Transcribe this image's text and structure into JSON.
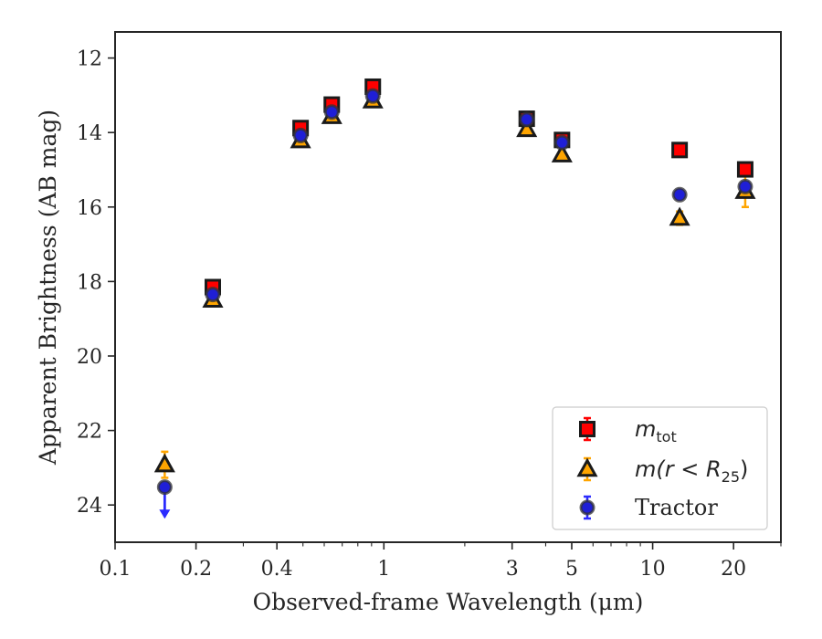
{
  "chart_data": {
    "type": "scatter",
    "xlabel": "Observed-frame Wavelength (μm)",
    "ylabel": "Apparent Brightness (AB mag)",
    "xscale": "log",
    "yinverted": true,
    "xlim": [
      0.1,
      30
    ],
    "ylim": [
      25,
      11.3
    ],
    "xticks": [
      {
        "value": 0.1,
        "label": "0.1"
      },
      {
        "value": 0.2,
        "label": "0.2"
      },
      {
        "value": 0.4,
        "label": "0.4"
      },
      {
        "value": 1,
        "label": "1"
      },
      {
        "value": 3,
        "label": "3"
      },
      {
        "value": 5,
        "label": "5"
      },
      {
        "value": 10,
        "label": "10"
      },
      {
        "value": 20,
        "label": "20"
      }
    ],
    "yticks": [
      {
        "value": 12,
        "label": "12"
      },
      {
        "value": 14,
        "label": "14"
      },
      {
        "value": 16,
        "label": "16"
      },
      {
        "value": 18,
        "label": "18"
      },
      {
        "value": 20,
        "label": "20"
      },
      {
        "value": 22,
        "label": "22"
      },
      {
        "value": 24,
        "label": "24"
      }
    ],
    "legend": {
      "placement": "lower-right",
      "entries": [
        {
          "series": "mtot",
          "main": "m",
          "sub": "tot",
          "suffix": ""
        },
        {
          "series": "mr25",
          "main": "m(r < R",
          "sub": "25",
          "suffix": ")"
        },
        {
          "series": "tractor",
          "main": "Tractor",
          "sub": "",
          "suffix": ""
        }
      ]
    },
    "series": [
      {
        "key": "mtot",
        "marker": "square",
        "color": "#ff0000",
        "errcolor": "#ff0000",
        "points": [
          {
            "x": 0.231,
            "y": 18.15,
            "err": 0.08
          },
          {
            "x": 0.49,
            "y": 13.88,
            "err": 0.05
          },
          {
            "x": 0.64,
            "y": 13.25,
            "err": 0.05
          },
          {
            "x": 0.91,
            "y": 12.77,
            "err": 0.05
          },
          {
            "x": 3.4,
            "y": 13.63,
            "err": 0.05
          },
          {
            "x": 4.6,
            "y": 14.2,
            "err": 0.05
          },
          {
            "x": 12.6,
            "y": 14.47,
            "err": 0.05
          },
          {
            "x": 22.1,
            "y": 14.99,
            "err": 0.05
          }
        ]
      },
      {
        "key": "mr25",
        "marker": "triangle",
        "color": "#ffa500",
        "errcolor": "#ffa500",
        "points": [
          {
            "x": 0.153,
            "y": 22.92,
            "err": 0.35
          },
          {
            "x": 0.231,
            "y": 18.5,
            "err": 0.08
          },
          {
            "x": 0.49,
            "y": 14.22,
            "err": 0.05
          },
          {
            "x": 0.64,
            "y": 13.57,
            "err": 0.05
          },
          {
            "x": 0.91,
            "y": 13.15,
            "err": 0.05
          },
          {
            "x": 3.4,
            "y": 13.92,
            "err": 0.05
          },
          {
            "x": 4.6,
            "y": 14.6,
            "err": 0.05
          },
          {
            "x": 12.6,
            "y": 16.3,
            "err": 0.18
          },
          {
            "x": 22.1,
            "y": 15.58,
            "err": 0.42
          }
        ]
      },
      {
        "key": "tractor",
        "marker": "circle",
        "color": "#1f1fd6",
        "errcolor": "#2b2bff",
        "points": [
          {
            "x": 0.153,
            "y": 23.52,
            "upper_limit": true
          },
          {
            "x": 0.231,
            "y": 18.35,
            "err": 0.05
          },
          {
            "x": 0.49,
            "y": 14.08,
            "err": 0.05
          },
          {
            "x": 0.64,
            "y": 13.45,
            "err": 0.05
          },
          {
            "x": 0.91,
            "y": 13.02,
            "err": 0.05
          },
          {
            "x": 3.4,
            "y": 13.65,
            "err": 0.05
          },
          {
            "x": 4.6,
            "y": 14.27,
            "err": 0.05
          },
          {
            "x": 12.6,
            "y": 15.67,
            "err": 0.08
          },
          {
            "x": 22.1,
            "y": 15.45,
            "err": 0.12
          }
        ]
      }
    ]
  }
}
